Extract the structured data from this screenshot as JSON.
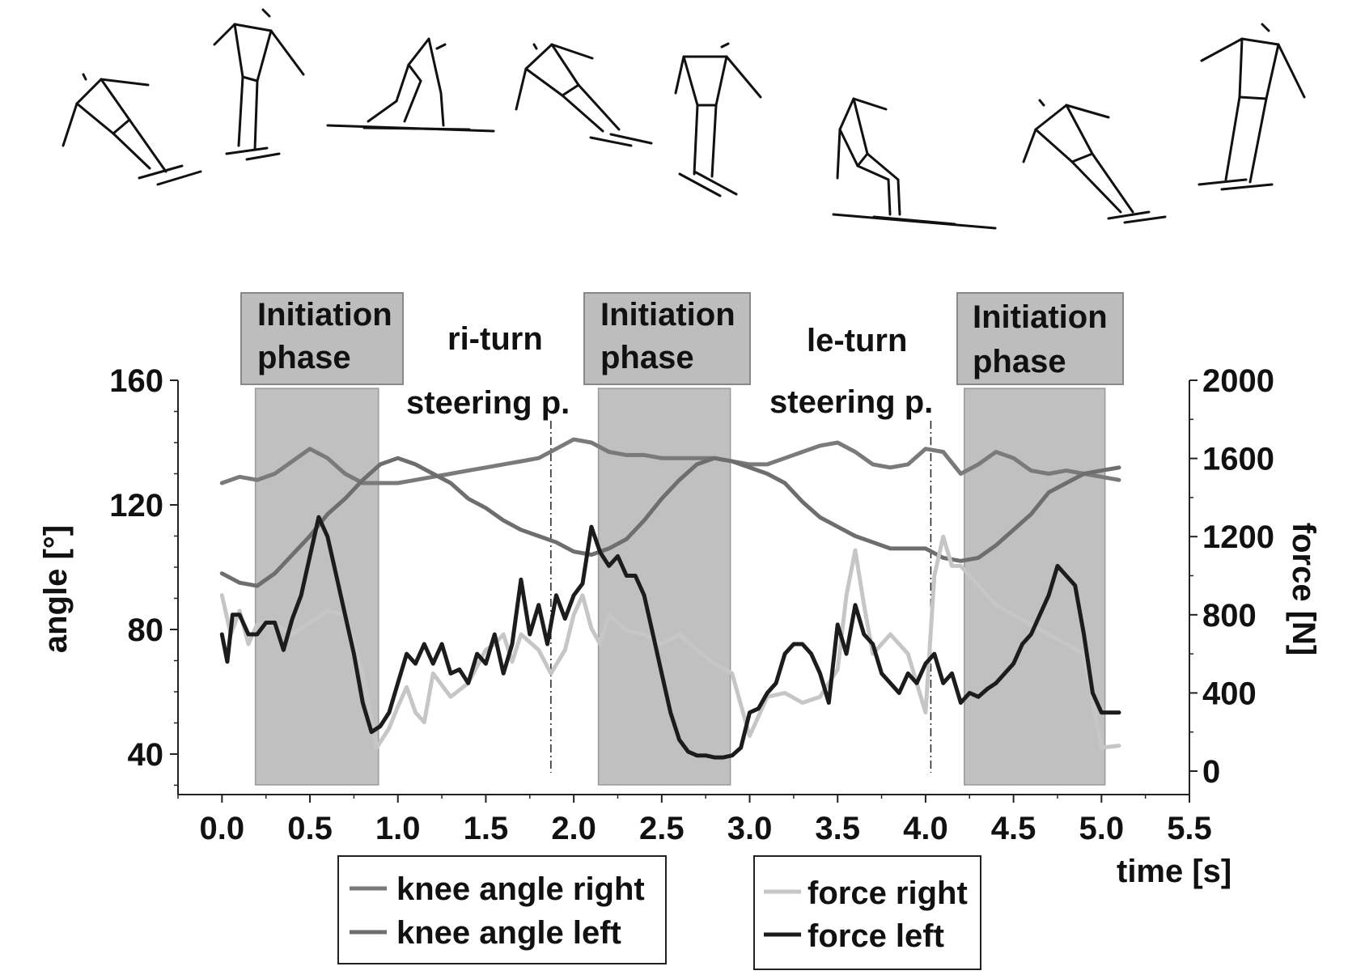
{
  "colors": {
    "knee_right": "#7a7a7a",
    "knee_left": "#6e6e6e",
    "force_right": "#c6c6c6",
    "force_left": "#1c1c1c",
    "phase_fill": "#c0c0c0"
  },
  "figure": {
    "skier_count": 8,
    "phase_boxes": [
      {
        "line1": "Initiation",
        "line2": "phase"
      },
      {
        "line1": "Initiation",
        "line2": "phase"
      },
      {
        "line1": "Initiation",
        "line2": "phase"
      }
    ],
    "turn_labels": [
      {
        "turn": "ri-turn",
        "sub": "steering p."
      },
      {
        "turn": "le-turn",
        "sub": "steering p."
      }
    ]
  },
  "chart_data": {
    "type": "line",
    "xlabel": "time [s]",
    "ylabel": "angle [°]",
    "ylabel_right": "force [N]",
    "xlim": [
      -0.25,
      5.5
    ],
    "ylim": [
      27,
      160
    ],
    "ylim_right": [
      -120,
      2000
    ],
    "x_ticks": [
      "0.0",
      "0.5",
      "1.0",
      "1.5",
      "2.0",
      "2.5",
      "3.0",
      "3.5",
      "4.0",
      "4.5",
      "5.0",
      "5.5"
    ],
    "y_ticks": [
      "40",
      "80",
      "120",
      "160"
    ],
    "y_ticks_right": [
      "0",
      "400",
      "800",
      "1200",
      "1600",
      "2000"
    ],
    "grid": false,
    "legend_position": "bottom",
    "initiation_phases": [
      [
        0.19,
        0.89
      ],
      [
        2.14,
        2.89
      ],
      [
        4.22,
        5.02
      ]
    ],
    "steering_markers": [
      1.87,
      4.03
    ],
    "series": [
      {
        "name": "knee angle right",
        "axis": "left",
        "x": [
          0.0,
          0.1,
          0.2,
          0.3,
          0.4,
          0.5,
          0.6,
          0.7,
          0.8,
          0.9,
          1.0,
          1.1,
          1.2,
          1.3,
          1.4,
          1.5,
          1.6,
          1.7,
          1.8,
          1.9,
          2.0,
          2.1,
          2.2,
          2.3,
          2.4,
          2.5,
          2.6,
          2.7,
          2.8,
          2.9,
          3.0,
          3.1,
          3.2,
          3.3,
          3.4,
          3.5,
          3.6,
          3.7,
          3.8,
          3.9,
          4.0,
          4.1,
          4.2,
          4.3,
          4.4,
          4.5,
          4.6,
          4.7,
          4.8,
          4.9,
          5.0,
          5.1
        ],
        "values": [
          127,
          129,
          128,
          130,
          134,
          138,
          135,
          130,
          127,
          127,
          127,
          128,
          129,
          130,
          131,
          132,
          133,
          134,
          135,
          138,
          141,
          140,
          137,
          136,
          136,
          135,
          135,
          135,
          135,
          134,
          133,
          133,
          135,
          137,
          139,
          140,
          137,
          133,
          132,
          133,
          138,
          137,
          130,
          133,
          137,
          135,
          131,
          130,
          131,
          130,
          129,
          128
        ]
      },
      {
        "name": "knee angle left",
        "axis": "left",
        "x": [
          0.0,
          0.1,
          0.2,
          0.3,
          0.4,
          0.5,
          0.6,
          0.7,
          0.8,
          0.9,
          1.0,
          1.1,
          1.2,
          1.3,
          1.4,
          1.5,
          1.6,
          1.7,
          1.8,
          1.9,
          2.0,
          2.1,
          2.2,
          2.3,
          2.4,
          2.5,
          2.6,
          2.7,
          2.8,
          2.9,
          3.0,
          3.1,
          3.2,
          3.3,
          3.4,
          3.5,
          3.6,
          3.7,
          3.8,
          3.9,
          4.0,
          4.1,
          4.2,
          4.3,
          4.4,
          4.5,
          4.6,
          4.7,
          4.8,
          4.9,
          5.0,
          5.1
        ],
        "values": [
          98,
          95,
          94,
          98,
          104,
          110,
          117,
          122,
          128,
          133,
          135,
          133,
          130,
          127,
          122,
          119,
          115,
          112,
          110,
          108,
          105,
          104,
          106,
          109,
          115,
          122,
          128,
          133,
          135,
          134,
          132,
          130,
          127,
          121,
          116,
          113,
          110,
          108,
          106,
          106,
          106,
          103,
          102,
          103,
          107,
          112,
          117,
          124,
          127,
          130,
          131,
          132
        ]
      },
      {
        "name": "force right",
        "axis": "right",
        "x": [
          0.0,
          0.05,
          0.1,
          0.15,
          0.2,
          0.3,
          0.4,
          0.5,
          0.6,
          0.7,
          0.8,
          0.88,
          0.95,
          1.0,
          1.05,
          1.1,
          1.15,
          1.2,
          1.3,
          1.4,
          1.5,
          1.55,
          1.6,
          1.65,
          1.7,
          1.8,
          1.87,
          1.95,
          2.0,
          2.05,
          2.1,
          2.15,
          2.2,
          2.3,
          2.4,
          2.5,
          2.6,
          2.7,
          2.8,
          2.9,
          3.0,
          3.1,
          3.2,
          3.3,
          3.4,
          3.5,
          3.55,
          3.6,
          3.65,
          3.7,
          3.8,
          3.9,
          4.0,
          4.05,
          4.1,
          4.15,
          4.2,
          4.3,
          4.4,
          4.5,
          4.6,
          4.7,
          4.8,
          4.9,
          5.0,
          5.1
        ],
        "values": [
          900,
          700,
          820,
          650,
          750,
          750,
          700,
          760,
          820,
          800,
          500,
          120,
          220,
          330,
          430,
          300,
          250,
          500,
          380,
          450,
          620,
          650,
          700,
          560,
          700,
          620,
          500,
          620,
          800,
          900,
          730,
          650,
          800,
          720,
          700,
          650,
          700,
          620,
          550,
          500,
          180,
          380,
          400,
          350,
          380,
          520,
          900,
          1130,
          850,
          600,
          700,
          600,
          300,
          1000,
          1200,
          1050,
          1050,
          950,
          850,
          800,
          750,
          700,
          650,
          600,
          120,
          130
        ]
      },
      {
        "name": "force left",
        "axis": "right",
        "x": [
          0.0,
          0.03,
          0.06,
          0.1,
          0.15,
          0.2,
          0.25,
          0.3,
          0.35,
          0.4,
          0.45,
          0.5,
          0.55,
          0.6,
          0.65,
          0.7,
          0.75,
          0.8,
          0.85,
          0.9,
          0.95,
          1.0,
          1.05,
          1.1,
          1.15,
          1.2,
          1.25,
          1.3,
          1.35,
          1.4,
          1.45,
          1.5,
          1.55,
          1.6,
          1.65,
          1.7,
          1.75,
          1.8,
          1.85,
          1.9,
          1.95,
          2.0,
          2.05,
          2.1,
          2.15,
          2.2,
          2.25,
          2.3,
          2.35,
          2.4,
          2.45,
          2.5,
          2.55,
          2.6,
          2.65,
          2.7,
          2.75,
          2.8,
          2.85,
          2.9,
          2.95,
          3.0,
          3.05,
          3.1,
          3.15,
          3.2,
          3.25,
          3.3,
          3.35,
          3.4,
          3.45,
          3.5,
          3.55,
          3.6,
          3.65,
          3.7,
          3.75,
          3.8,
          3.85,
          3.9,
          3.95,
          4.0,
          4.05,
          4.1,
          4.15,
          4.2,
          4.25,
          4.3,
          4.35,
          4.4,
          4.45,
          4.5,
          4.55,
          4.6,
          4.65,
          4.7,
          4.75,
          4.8,
          4.85,
          4.9,
          4.95,
          5.0,
          5.05,
          5.1
        ],
        "values": [
          700,
          560,
          800,
          800,
          700,
          700,
          760,
          760,
          620,
          780,
          900,
          1100,
          1300,
          1200,
          1000,
          800,
          600,
          350,
          200,
          230,
          300,
          450,
          600,
          550,
          650,
          550,
          650,
          500,
          520,
          450,
          600,
          550,
          700,
          500,
          650,
          980,
          700,
          850,
          650,
          900,
          780,
          900,
          960,
          1250,
          1120,
          1050,
          1100,
          1000,
          1000,
          900,
          700,
          500,
          300,
          160,
          100,
          80,
          80,
          70,
          70,
          80,
          120,
          300,
          320,
          400,
          450,
          600,
          650,
          650,
          600,
          500,
          350,
          750,
          600,
          850,
          700,
          650,
          500,
          450,
          400,
          500,
          450,
          550,
          600,
          450,
          500,
          350,
          400,
          380,
          420,
          450,
          500,
          550,
          650,
          700,
          800,
          900,
          1050,
          1000,
          950,
          700,
          400,
          300,
          300,
          300
        ]
      }
    ]
  },
  "legend": {
    "group1": [
      "knee angle right",
      "knee angle left"
    ],
    "group2": [
      "force right",
      "force left"
    ]
  }
}
